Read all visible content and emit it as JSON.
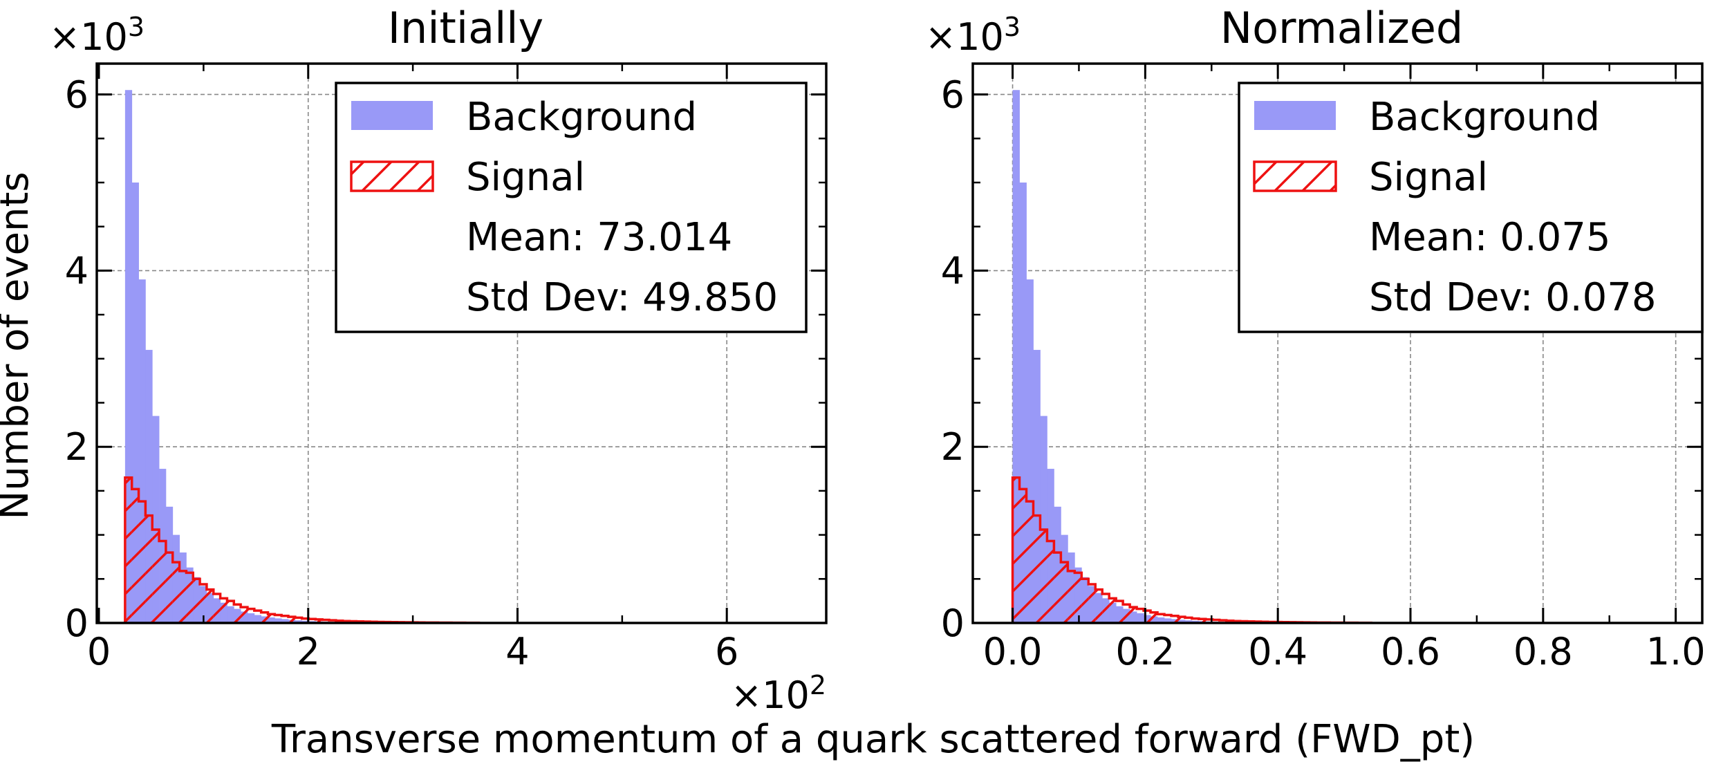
{
  "figure": {
    "xlabel": "Transverse momentum of a quark scattered forward (FWD_pt)",
    "ylabel": "Number of events"
  },
  "colors": {
    "background_fill": "#9999f7",
    "signal_edge": "#ee1111",
    "grid": "#888888"
  },
  "chart_data": [
    {
      "type": "bar",
      "title": "Initially",
      "xlim": [
        -0.02,
        6.95
      ],
      "ylim": [
        0,
        6.35
      ],
      "xticks": [
        0,
        2,
        4,
        6
      ],
      "xtick_labels": [
        "0",
        "2",
        "4",
        "6"
      ],
      "yticks": [
        0,
        2,
        4,
        6
      ],
      "ytick_labels": [
        "0",
        "2",
        "4",
        "6"
      ],
      "x_multiplier": "×10",
      "x_multiplier_exp": "2",
      "y_multiplier": "×10",
      "y_multiplier_exp": "3",
      "grid": true,
      "legend_position": "top-right",
      "legend": {
        "background_label": "Background",
        "signal_label": "Signal",
        "mean_text": "Mean: 73.014",
        "std_text": "Std Dev: 49.850"
      },
      "bin_edges": [
        0.25,
        0.315,
        0.38,
        0.445,
        0.51,
        0.575,
        0.64,
        0.705,
        0.77,
        0.835,
        0.9,
        0.965,
        1.03,
        1.095,
        1.16,
        1.225,
        1.29,
        1.355,
        1.42,
        1.485,
        1.55,
        1.615,
        1.68,
        1.745,
        1.81,
        1.875,
        1.94,
        2.005,
        2.07,
        2.135,
        2.2,
        2.265,
        2.33,
        2.395,
        2.46,
        2.525,
        2.59,
        2.655,
        2.72,
        2.785,
        2.85,
        2.915,
        2.98,
        3.045,
        3.11,
        3.175,
        3.24,
        3.305,
        3.37,
        3.435,
        3.5,
        3.565,
        3.63
      ],
      "series": [
        {
          "name": "Background",
          "values": [
            6.05,
            5.0,
            3.9,
            3.1,
            2.35,
            1.75,
            1.32,
            1.0,
            0.8,
            0.63,
            0.52,
            0.42,
            0.34,
            0.28,
            0.23,
            0.19,
            0.16,
            0.13,
            0.11,
            0.09,
            0.075,
            0.063,
            0.052,
            0.044,
            0.036,
            0.03,
            0.025,
            0.021,
            0.017,
            0.014,
            0.012,
            0.01,
            0.008,
            0.007,
            0.006,
            0.005,
            0.004,
            0.0035,
            0.003,
            0.0025,
            0.002,
            0.002,
            0.0015,
            0.0015,
            0.001,
            0.001,
            0.001,
            0.0008,
            0.0006,
            0.0005,
            0.0004,
            0.0003
          ]
        },
        {
          "name": "Signal",
          "values": [
            1.65,
            1.52,
            1.38,
            1.22,
            1.06,
            0.93,
            0.8,
            0.69,
            0.59,
            0.57,
            0.5,
            0.44,
            0.38,
            0.33,
            0.28,
            0.25,
            0.21,
            0.18,
            0.16,
            0.14,
            0.12,
            0.1,
            0.09,
            0.08,
            0.07,
            0.06,
            0.05,
            0.045,
            0.04,
            0.035,
            0.03,
            0.026,
            0.022,
            0.02,
            0.018,
            0.016,
            0.014,
            0.012,
            0.011,
            0.01,
            0.009,
            0.008,
            0.007,
            0.006,
            0.005,
            0.005,
            0.004,
            0.004,
            0.003,
            0.003,
            0.002,
            0.002
          ]
        }
      ]
    },
    {
      "type": "bar",
      "title": "Normalized",
      "xlim": [
        -0.06,
        1.04
      ],
      "ylim": [
        0,
        6.35
      ],
      "xticks": [
        0,
        0.2,
        0.4,
        0.6,
        0.8,
        1.0
      ],
      "xtick_labels": [
        "0.0",
        "0.2",
        "0.4",
        "0.6",
        "0.8",
        "1.0"
      ],
      "yticks": [
        0,
        2,
        4,
        6
      ],
      "ytick_labels": [
        "0",
        "2",
        "4",
        "6"
      ],
      "y_multiplier": "×10",
      "y_multiplier_exp": "3",
      "grid": true,
      "legend_position": "top-right",
      "legend": {
        "background_label": "Background",
        "signal_label": "Signal",
        "mean_text": "Mean: 0.075",
        "std_text": "Std Dev: 0.078"
      },
      "bin_edges": [
        0.0,
        0.0104,
        0.0208,
        0.0312,
        0.0416,
        0.052,
        0.0624,
        0.0728,
        0.0832,
        0.0936,
        0.104,
        0.1144,
        0.1248,
        0.1352,
        0.1456,
        0.156,
        0.1664,
        0.1768,
        0.1872,
        0.1976,
        0.208,
        0.2184,
        0.2288,
        0.2392,
        0.2496,
        0.26,
        0.2704,
        0.2808,
        0.2912,
        0.3016,
        0.312,
        0.3224,
        0.3328,
        0.3432,
        0.3536,
        0.364,
        0.3744,
        0.3848,
        0.3952,
        0.4056,
        0.416,
        0.4264,
        0.4368,
        0.4472,
        0.4576,
        0.468,
        0.4784,
        0.4888,
        0.4992,
        0.5096,
        0.52,
        0.5304,
        0.5408
      ],
      "series": [
        {
          "name": "Background",
          "values": [
            6.05,
            5.0,
            3.9,
            3.1,
            2.35,
            1.75,
            1.32,
            1.0,
            0.8,
            0.63,
            0.52,
            0.42,
            0.34,
            0.28,
            0.23,
            0.19,
            0.16,
            0.13,
            0.11,
            0.09,
            0.075,
            0.063,
            0.052,
            0.044,
            0.036,
            0.03,
            0.025,
            0.021,
            0.017,
            0.014,
            0.012,
            0.01,
            0.008,
            0.007,
            0.006,
            0.005,
            0.004,
            0.0035,
            0.003,
            0.0025,
            0.002,
            0.002,
            0.0015,
            0.0015,
            0.001,
            0.001,
            0.001,
            0.0008,
            0.0006,
            0.0005,
            0.0004,
            0.0003
          ]
        },
        {
          "name": "Signal",
          "values": [
            1.65,
            1.52,
            1.38,
            1.22,
            1.06,
            0.93,
            0.8,
            0.69,
            0.59,
            0.57,
            0.5,
            0.44,
            0.38,
            0.33,
            0.28,
            0.25,
            0.21,
            0.18,
            0.16,
            0.14,
            0.12,
            0.1,
            0.09,
            0.08,
            0.07,
            0.06,
            0.05,
            0.045,
            0.04,
            0.035,
            0.03,
            0.026,
            0.022,
            0.02,
            0.018,
            0.016,
            0.014,
            0.012,
            0.011,
            0.01,
            0.009,
            0.008,
            0.007,
            0.006,
            0.005,
            0.005,
            0.004,
            0.004,
            0.003,
            0.003,
            0.002,
            0.002
          ]
        }
      ]
    }
  ]
}
